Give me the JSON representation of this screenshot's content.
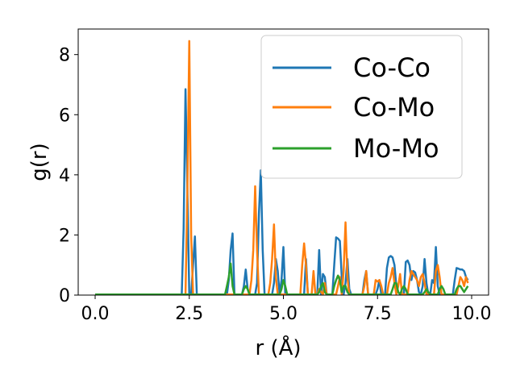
{
  "chart_data": {
    "type": "line",
    "xlabel": "r (Å)",
    "ylabel": "g(r)",
    "xlim": [
      -0.45,
      10.45
    ],
    "ylim": [
      0,
      8.85
    ],
    "xticks": [
      0.0,
      2.5,
      5.0,
      7.5,
      10.0
    ],
    "xtick_labels": [
      "0.0",
      "2.5",
      "5.0",
      "7.5",
      "10.0"
    ],
    "yticks": [
      0,
      2,
      4,
      6,
      8
    ],
    "ytick_labels": [
      "0",
      "2",
      "4",
      "6",
      "8"
    ],
    "grid": false,
    "legend_position": "top-right",
    "series": [
      {
        "name": "Co-Co",
        "color": "#1f77b4",
        "x": [
          0.0,
          2.3,
          2.35,
          2.4,
          2.45,
          2.5,
          2.55,
          2.6,
          2.65,
          2.7,
          2.75,
          3.5,
          3.55,
          3.6,
          3.65,
          3.7,
          3.9,
          3.95,
          4.0,
          4.05,
          4.1,
          4.25,
          4.3,
          4.35,
          4.4,
          4.45,
          4.5,
          4.7,
          4.75,
          4.8,
          4.85,
          4.9,
          4.95,
          5.0,
          5.05,
          5.55,
          5.6,
          5.65,
          5.9,
          5.95,
          6.0,
          6.05,
          6.1,
          6.15,
          6.2,
          6.3,
          6.35,
          6.4,
          6.45,
          6.5,
          6.55,
          6.6,
          6.65,
          6.7,
          6.75,
          6.8,
          6.85,
          7.1,
          7.15,
          7.2,
          7.25,
          7.45,
          7.5,
          7.55,
          7.6,
          7.7,
          7.75,
          7.8,
          7.85,
          7.9,
          7.95,
          8.0,
          8.05,
          8.1,
          8.2,
          8.25,
          8.3,
          8.35,
          8.4,
          8.45,
          8.5,
          8.55,
          8.6,
          8.65,
          8.7,
          8.75,
          8.8,
          8.85,
          8.9,
          8.95,
          9.0,
          9.05,
          9.1,
          9.15,
          9.2,
          9.25,
          9.5,
          9.55,
          9.6,
          9.65,
          9.7,
          9.75,
          9.8,
          9.85,
          9.9
        ],
        "y": [
          0.02,
          0.02,
          2.2,
          6.85,
          3.5,
          0.02,
          0.02,
          1.0,
          1.95,
          0.02,
          0.02,
          0.02,
          0.5,
          1.5,
          2.05,
          0.02,
          0.02,
          0.3,
          0.85,
          0.2,
          0.02,
          0.02,
          0.4,
          2.7,
          4.15,
          1.5,
          0.02,
          0.02,
          0.4,
          1.2,
          0.8,
          0.02,
          0.5,
          1.6,
          0.02,
          0.02,
          1.2,
          0.02,
          0.02,
          1.5,
          0.02,
          0.7,
          0.6,
          0.02,
          0.02,
          0.02,
          1.0,
          1.92,
          1.88,
          1.8,
          0.6,
          0.02,
          0.4,
          1.2,
          0.2,
          0.02,
          0.02,
          0.02,
          0.5,
          0.8,
          0.02,
          0.02,
          0.2,
          0.5,
          0.02,
          0.02,
          0.9,
          1.25,
          1.3,
          1.25,
          1.0,
          0.3,
          0.1,
          0.02,
          0.02,
          1.1,
          1.15,
          1.0,
          0.5,
          0.8,
          0.75,
          0.5,
          0.1,
          0.02,
          0.3,
          1.2,
          0.4,
          0.02,
          0.02,
          0.5,
          0.4,
          1.6,
          0.3,
          0.02,
          0.02,
          0.02,
          0.02,
          0.5,
          0.9,
          0.88,
          0.85,
          0.85,
          0.8,
          0.6,
          0.5
        ]
      },
      {
        "name": "Co-Mo",
        "color": "#ff7f0e",
        "x": [
          0.0,
          2.4,
          2.45,
          2.5,
          2.55,
          2.6,
          4.1,
          4.15,
          4.2,
          4.25,
          4.3,
          4.35,
          4.6,
          4.65,
          4.7,
          4.75,
          4.8,
          4.85,
          4.9,
          5.45,
          5.5,
          5.55,
          5.6,
          5.65,
          5.75,
          5.8,
          5.85,
          5.9,
          5.95,
          6.05,
          6.1,
          6.15,
          6.2,
          6.4,
          6.45,
          6.5,
          6.55,
          6.6,
          6.65,
          6.7,
          6.75,
          6.8,
          7.05,
          7.1,
          7.15,
          7.2,
          7.25,
          7.4,
          7.45,
          7.5,
          7.55,
          7.6,
          7.65,
          7.75,
          7.8,
          7.85,
          7.9,
          7.95,
          8.0,
          8.05,
          8.1,
          8.15,
          8.3,
          8.35,
          8.4,
          8.45,
          8.5,
          8.55,
          8.6,
          8.65,
          8.7,
          8.75,
          8.8,
          8.85,
          9.0,
          9.05,
          9.1,
          9.15,
          9.2,
          9.25,
          9.6,
          9.65,
          9.7,
          9.75,
          9.8,
          9.85,
          9.9
        ],
        "y": [
          0.02,
          0.02,
          3.5,
          8.45,
          2.0,
          0.02,
          0.02,
          0.5,
          1.5,
          3.62,
          1.5,
          0.02,
          0.02,
          0.4,
          1.2,
          2.35,
          0.6,
          0.02,
          0.02,
          0.02,
          1.0,
          1.72,
          1.0,
          0.02,
          0.02,
          0.8,
          0.02,
          0.02,
          0.2,
          0.02,
          0.4,
          0.02,
          0.02,
          0.02,
          0.3,
          0.6,
          0.02,
          0.8,
          2.42,
          0.6,
          0.02,
          0.02,
          0.02,
          0.02,
          0.3,
          0.8,
          0.02,
          0.02,
          0.5,
          0.45,
          0.5,
          0.3,
          0.02,
          0.02,
          0.4,
          0.6,
          0.9,
          0.4,
          0.02,
          0.3,
          0.7,
          0.02,
          0.02,
          0.5,
          0.8,
          0.7,
          0.6,
          0.5,
          0.3,
          0.6,
          0.7,
          0.4,
          0.02,
          0.02,
          0.02,
          0.8,
          1.0,
          0.6,
          0.02,
          0.02,
          0.02,
          0.3,
          0.6,
          0.5,
          0.3,
          0.6,
          0.4
        ]
      },
      {
        "name": "Mo-Mo",
        "color": "#2ca02c",
        "x": [
          0.0,
          3.45,
          3.5,
          3.55,
          3.6,
          3.65,
          3.7,
          3.9,
          3.95,
          4.0,
          4.05,
          4.1,
          4.9,
          4.95,
          5.0,
          5.05,
          5.1,
          5.9,
          5.95,
          6.0,
          6.05,
          6.1,
          6.15,
          6.3,
          6.35,
          6.4,
          6.45,
          6.5,
          6.55,
          6.6,
          6.65,
          6.7,
          6.75,
          7.85,
          7.9,
          7.95,
          8.0,
          8.05,
          8.1,
          8.15,
          8.2,
          8.25,
          8.3,
          8.7,
          8.75,
          8.8,
          8.85,
          8.9,
          9.1,
          9.15,
          9.2,
          9.25,
          9.3,
          9.55,
          9.6,
          9.65,
          9.7,
          9.75,
          9.8,
          9.85,
          9.9
        ],
        "y": [
          0.02,
          0.02,
          0.3,
          0.6,
          1.05,
          0.3,
          0.02,
          0.02,
          0.2,
          0.3,
          0.2,
          0.02,
          0.02,
          0.2,
          0.5,
          0.3,
          0.02,
          0.02,
          0.1,
          0.3,
          0.4,
          0.1,
          0.02,
          0.02,
          0.3,
          0.5,
          0.65,
          0.5,
          0.1,
          0.3,
          0.3,
          0.1,
          0.02,
          0.02,
          0.2,
          0.4,
          0.4,
          0.1,
          0.02,
          0.2,
          0.3,
          0.2,
          0.02,
          0.02,
          0.1,
          0.2,
          0.1,
          0.02,
          0.02,
          0.2,
          0.3,
          0.2,
          0.02,
          0.02,
          0.2,
          0.3,
          0.3,
          0.2,
          0.1,
          0.2,
          0.3
        ]
      }
    ]
  }
}
